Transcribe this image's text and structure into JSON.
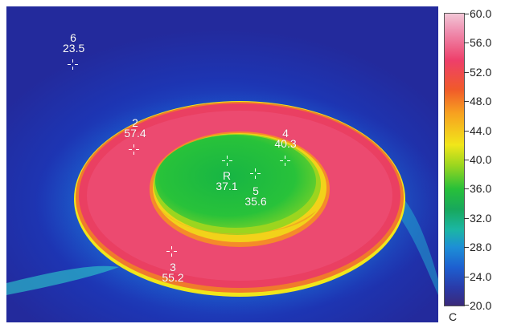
{
  "spots": [
    {
      "label": "6",
      "value": "23.5"
    },
    {
      "label": "2",
      "value": "57.4"
    },
    {
      "label": "4",
      "value": "40.3"
    },
    {
      "label": "R",
      "value": "37.1"
    },
    {
      "label": "5",
      "value": "35.6"
    },
    {
      "label": "3",
      "value": "55.2"
    }
  ],
  "scale": {
    "unit": "C",
    "ticks": [
      "60.0",
      "56.0",
      "52.0",
      "48.0",
      "44.0",
      "40.0",
      "36.0",
      "32.0",
      "28.0",
      "24.0",
      "20.0"
    ]
  }
}
